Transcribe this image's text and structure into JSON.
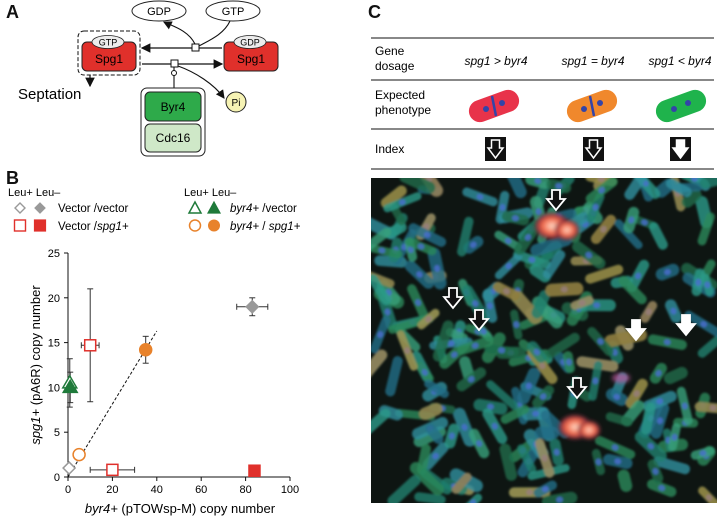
{
  "panels": {
    "a": "A",
    "b": "B",
    "c": "C"
  },
  "panel_a": {
    "gdp_top": "GDP",
    "gtp_top": "GTP",
    "left_tag": "GTP",
    "left_protein": "Spg1",
    "right_tag": "GDP",
    "right_protein": "Spg1",
    "septation": "Septation",
    "byr4": "Byr4",
    "cdc16": "Cdc16",
    "pi": "Pi"
  },
  "panel_b": {
    "legend": {
      "left_header": "Leu+ Leu–",
      "right_header": "Leu+ Leu–",
      "vv": "Vector /vector",
      "vs_prefix": "Vector /",
      "vs_gene": "spg1+",
      "bv_gene": "byr4+",
      "bv_suffix": " /vector",
      "bs_gene1": "byr4+",
      "bs_sep": " / ",
      "bs_gene2": "spg1+"
    },
    "ylabel_gene": "spg1+",
    "ylabel_rest": " (pA6R) copy number",
    "xlabel_gene": "byr4+",
    "xlabel_rest": " (pTOWsp-M) copy number"
  },
  "chart_data": {
    "type": "scatter",
    "xlabel": "byr4+ (pTOWsp-M) copy number",
    "ylabel": "spg1+ (pA6R) copy number",
    "xlim": [
      0,
      100
    ],
    "ylim": [
      0,
      25
    ],
    "xticks": [
      "0",
      "20",
      "40",
      "60",
      "80",
      "100"
    ],
    "yticks": [
      "0",
      "5",
      "10",
      "15",
      "20",
      "25"
    ],
    "grid": false,
    "series": [
      {
        "name": "Vector /vector",
        "marker": "diamond",
        "color": "#999999",
        "points": [
          {
            "x": 0.5,
            "y": 1.0,
            "fill": false
          },
          {
            "x": 83,
            "y": 19,
            "fill": true,
            "xerr": 7,
            "yerr": 1
          }
        ]
      },
      {
        "name": "Vector /spg1+",
        "marker": "square",
        "color": "#e0302b",
        "points": [
          {
            "x": 10,
            "y": 14.7,
            "fill": false,
            "xerr": 4,
            "yerr": 6.3
          },
          {
            "x": 20,
            "y": 0.8,
            "fill": false,
            "xerr": 10
          },
          {
            "x": 84,
            "y": 0.7,
            "fill": true
          }
        ]
      },
      {
        "name": "byr4+ /vector",
        "marker": "triangle",
        "color": "#1f7a3a",
        "points": [
          {
            "x": 0.8,
            "y": 10.5,
            "fill": false,
            "yerr": 2.7
          },
          {
            "x": 1.0,
            "y": 10.0,
            "fill": true,
            "yerr": 1.7
          }
        ]
      },
      {
        "name": "byr4+ / spg1+",
        "marker": "circle",
        "color": "#e8822b",
        "points": [
          {
            "x": 5,
            "y": 2.5,
            "fill": false
          },
          {
            "x": 35,
            "y": 14.2,
            "fill": true,
            "yerr": 1.5
          }
        ]
      }
    ],
    "fit_line": {
      "from": [
        0,
        0
      ],
      "to": [
        40,
        16.3
      ],
      "style": "dashed"
    }
  },
  "panel_c": {
    "col_header": "Gene\ndosage",
    "col1": "spg1 > byr4",
    "col2": "spg1 = byr4",
    "col3": "spg1 < byr4",
    "row2": "Expected\nphenotype",
    "row3": "Index"
  },
  "colors": {
    "spg1_red": "#e0302b",
    "byr4_green": "#2eaa4a",
    "cdc16_green": "#cfe8c8",
    "cell_red": "#e8334a",
    "cell_orange": "#f0882c",
    "cell_green": "#1fb34c",
    "nucleus_blue": "#3344a8"
  }
}
